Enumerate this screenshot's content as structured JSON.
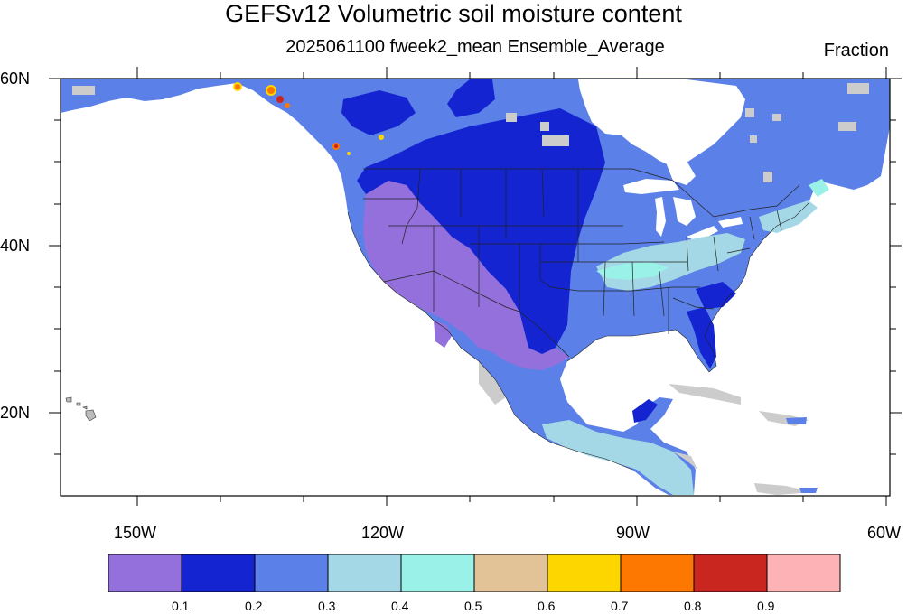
{
  "figure": {
    "title": "GEFSv12 Volumetric soil moisture content",
    "subtitle": "2025061100 fweek2_mean Ensemble_Average",
    "units": "Fraction"
  },
  "map": {
    "projection": "cylindrical equidistant",
    "lon_range": [
      -159,
      -59
    ],
    "lat_range": [
      10,
      60
    ],
    "lat_labels": [
      "60N",
      "40N",
      "20N"
    ],
    "lon_labels": [
      "150W",
      "120W",
      "90W",
      "60W"
    ],
    "field": "volumetric soil moisture fraction, week-2 ensemble mean"
  },
  "colorbar": {
    "colors": [
      "#9370db",
      "#1324d0",
      "#5b80e8",
      "#a5d8e6",
      "#9af1e8",
      "#e2c297",
      "#fdd600",
      "#fc7800",
      "#c8261f",
      "#fdb3b6"
    ],
    "labels": [
      "0.1",
      "0.2",
      "0.3",
      "0.4",
      "0.5",
      "0.6",
      "0.7",
      "0.8",
      "0.9"
    ]
  },
  "regions": [
    {
      "name": "Southwest US / Northwest Mexico",
      "range": "0-0.1",
      "color": "#9370db"
    },
    {
      "name": "Central Plains / Canadian Prairies",
      "range": "0.1-0.2",
      "color": "#1324d0"
    },
    {
      "name": "Eastern US / Eastern Canada",
      "range": "0.2-0.3",
      "color": "#5b80e8"
    },
    {
      "name": "Ohio Valley / Mid-Atlantic",
      "range": "0.3-0.4",
      "color": "#a5d8e6"
    },
    {
      "name": "Central America",
      "range": "0.3-0.4",
      "color": "#a5d8e6"
    },
    {
      "name": "Alaska coastal mountains",
      "range": "0.6-0.9",
      "color": "#fc7800"
    }
  ]
}
